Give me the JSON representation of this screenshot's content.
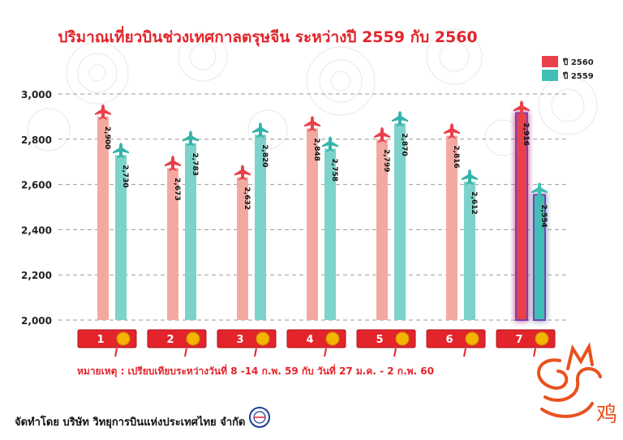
{
  "title": "ปริมาณเที่ยวบินช่วงเทศกาลตรุษจีน ระหว่างปี 2559 กับ 2560",
  "legend": [
    {
      "label": "ปี 2560",
      "color": "#e8414a"
    },
    {
      "label": "ปี 2559",
      "color": "#3fbfb4"
    }
  ],
  "note": "หมายเหตุ : เปรียบเทียบระหว่างวันที่ 8 -14 ก.พ. 59 กับ วันที่ 27 ม.ค. - 2 ก.พ. 60",
  "footer": "จัดทำโดย บริษัท วิทยุการบินแห่งประเทศไทย จำกัด",
  "decor_char": "鸡",
  "colors": {
    "title": "#e3242b",
    "series_2560": "#f4a9a0",
    "series_2559": "#7dd3ca",
    "highlight_2560": "#e8414a",
    "highlight_2559": "#3fbfb4",
    "day_box": "#e3242b",
    "coin": "#f5b400"
  },
  "chart_data": {
    "type": "bar",
    "categories": [
      "1",
      "2",
      "3",
      "4",
      "5",
      "6",
      "7"
    ],
    "series": [
      {
        "name": "ปี 2560",
        "values": [
          2900,
          2673,
          2632,
          2848,
          2799,
          2816,
          2916
        ],
        "labels": [
          "2,900",
          "2,673",
          "2,632",
          "2,848",
          "2,799",
          "2,816",
          "2,916"
        ]
      },
      {
        "name": "ปี 2559",
        "values": [
          2730,
          2783,
          2820,
          2758,
          2870,
          2612,
          2554
        ],
        "labels": [
          "2,730",
          "2,783",
          "2,820",
          "2,758",
          "2,870",
          "2,612",
          "2,554"
        ]
      }
    ],
    "ylim": [
      2000,
      3000
    ],
    "yticks": [
      2000,
      2200,
      2400,
      2600,
      2800,
      3000
    ],
    "ytick_labels": [
      "2,000",
      "2,200",
      "2,400",
      "2,600",
      "2,800",
      "3,000"
    ],
    "grid": true,
    "legend_position": "top-right",
    "highlight_category": "7"
  }
}
